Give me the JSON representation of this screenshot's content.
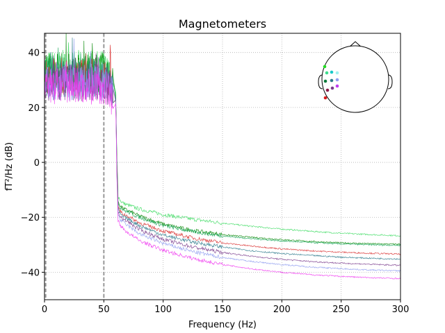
{
  "chart_data": {
    "type": "line",
    "title": "Magnetometers",
    "xlabel": "Frequency (Hz)",
    "ylabel": "fT²/Hz (dB)",
    "xlim": [
      0,
      300
    ],
    "ylim": [
      -50,
      47
    ],
    "x_ticks": [
      0,
      50,
      100,
      150,
      200,
      250,
      300
    ],
    "x_tick_labels": [
      "0",
      "50",
      "100",
      "150",
      "200",
      "250",
      "300"
    ],
    "y_ticks": [
      40,
      20,
      0,
      -20,
      -40
    ],
    "y_tick_labels": [
      "40",
      "20",
      "0",
      "−20",
      "−40"
    ],
    "grid": true,
    "grid_style": "dotted",
    "reference_lines_x": [
      1,
      50
    ],
    "channels_shown_in_inset": "sensor head map (top-right)",
    "series": [
      {
        "color": "#3ddc62",
        "low_freq_level": 34,
        "x": [
          60,
          61,
          62,
          64,
          67,
          70,
          80,
          100,
          125,
          150,
          175,
          200,
          225,
          250,
          275,
          300
        ],
        "y": [
          25,
          2,
          -12,
          -14,
          -15,
          -15.5,
          -17,
          -19,
          -20.7,
          -22.1,
          -23.3,
          -24.3,
          -25.1,
          -25.8,
          -26.3,
          -26.7
        ]
      },
      {
        "color": "#0a8a0a",
        "low_freq_level": 33,
        "x": [
          60,
          61,
          62,
          64,
          67,
          70,
          80,
          100,
          125,
          150,
          175,
          200,
          225,
          250,
          275,
          300
        ],
        "y": [
          24,
          1,
          -14,
          -16,
          -17,
          -17.5,
          -19.5,
          -22.5,
          -24.8,
          -26.3,
          -27.3,
          -28.1,
          -28.8,
          -29.3,
          -29.6,
          -29.8
        ]
      },
      {
        "color": "#1aa75a",
        "low_freq_level": 32,
        "x": [
          60,
          61,
          62,
          64,
          67,
          70,
          80,
          100,
          125,
          150,
          175,
          200,
          225,
          250,
          275,
          300
        ],
        "y": [
          24,
          0,
          -14.5,
          -16.5,
          -17.5,
          -18,
          -20,
          -23,
          -25.2,
          -26.8,
          -27.8,
          -28.6,
          -29.2,
          -29.7,
          -30,
          -30.2
        ]
      },
      {
        "color": "#d93030",
        "low_freq_level": 31,
        "x": [
          60,
          61,
          62,
          64,
          67,
          70,
          80,
          100,
          125,
          150,
          175,
          200,
          225,
          250,
          275,
          300
        ],
        "y": [
          23,
          -1,
          -16,
          -18,
          -19,
          -19.5,
          -22,
          -25,
          -27.5,
          -29.3,
          -30.5,
          -31.5,
          -32.2,
          -32.7,
          -33.1,
          -33.4
        ]
      },
      {
        "color": "#2e7a8c",
        "low_freq_level": 30,
        "x": [
          60,
          61,
          62,
          64,
          67,
          70,
          80,
          100,
          125,
          150,
          175,
          200,
          225,
          250,
          275,
          300
        ],
        "y": [
          23,
          -2,
          -17,
          -19,
          -20,
          -20.5,
          -23,
          -26.5,
          -29,
          -30.8,
          -32.2,
          -33.2,
          -33.9,
          -34.5,
          -34.9,
          -35.2
        ]
      },
      {
        "color": "#7a3b8c",
        "low_freq_level": 29,
        "x": [
          60,
          61,
          62,
          64,
          67,
          70,
          80,
          100,
          125,
          150,
          175,
          200,
          225,
          250,
          275,
          300
        ],
        "y": [
          22,
          -3,
          -18,
          -20,
          -21,
          -21.5,
          -24.5,
          -28,
          -30.8,
          -32.8,
          -34.2,
          -35.3,
          -36.1,
          -36.7,
          -37.1,
          -37.5
        ]
      },
      {
        "color": "#8f9cf0",
        "low_freq_level": 29,
        "x": [
          60,
          61,
          62,
          64,
          67,
          70,
          80,
          100,
          125,
          150,
          175,
          200,
          225,
          250,
          275,
          300
        ],
        "y": [
          22,
          -4,
          -19,
          -21,
          -22,
          -23,
          -26,
          -29.5,
          -32.5,
          -34.6,
          -36.1,
          -37.2,
          -38.1,
          -38.7,
          -39.2,
          -39.5
        ]
      },
      {
        "color": "#f03cf0",
        "low_freq_level": 28,
        "x": [
          60,
          61,
          62,
          64,
          67,
          70,
          80,
          100,
          125,
          150,
          175,
          200,
          225,
          250,
          275,
          300
        ],
        "y": [
          21,
          -5,
          -21,
          -23,
          -24.5,
          -25.5,
          -28.5,
          -32,
          -35,
          -37.2,
          -38.8,
          -40,
          -40.9,
          -41.5,
          -42,
          -42.3
        ]
      }
    ],
    "inset_sensors": [
      {
        "color": "#22dd22"
      },
      {
        "color": "#3ddc8c"
      },
      {
        "color": "#1ac9c9"
      },
      {
        "color": "#a0f0f0"
      },
      {
        "color": "#0a7a3a"
      },
      {
        "color": "#2e7a8c"
      },
      {
        "color": "#8f9cf0"
      },
      {
        "color": "#8c1a4a"
      },
      {
        "color": "#7a3b8c"
      },
      {
        "color": "#c03cf0"
      },
      {
        "color": "#d91a1a"
      }
    ]
  }
}
